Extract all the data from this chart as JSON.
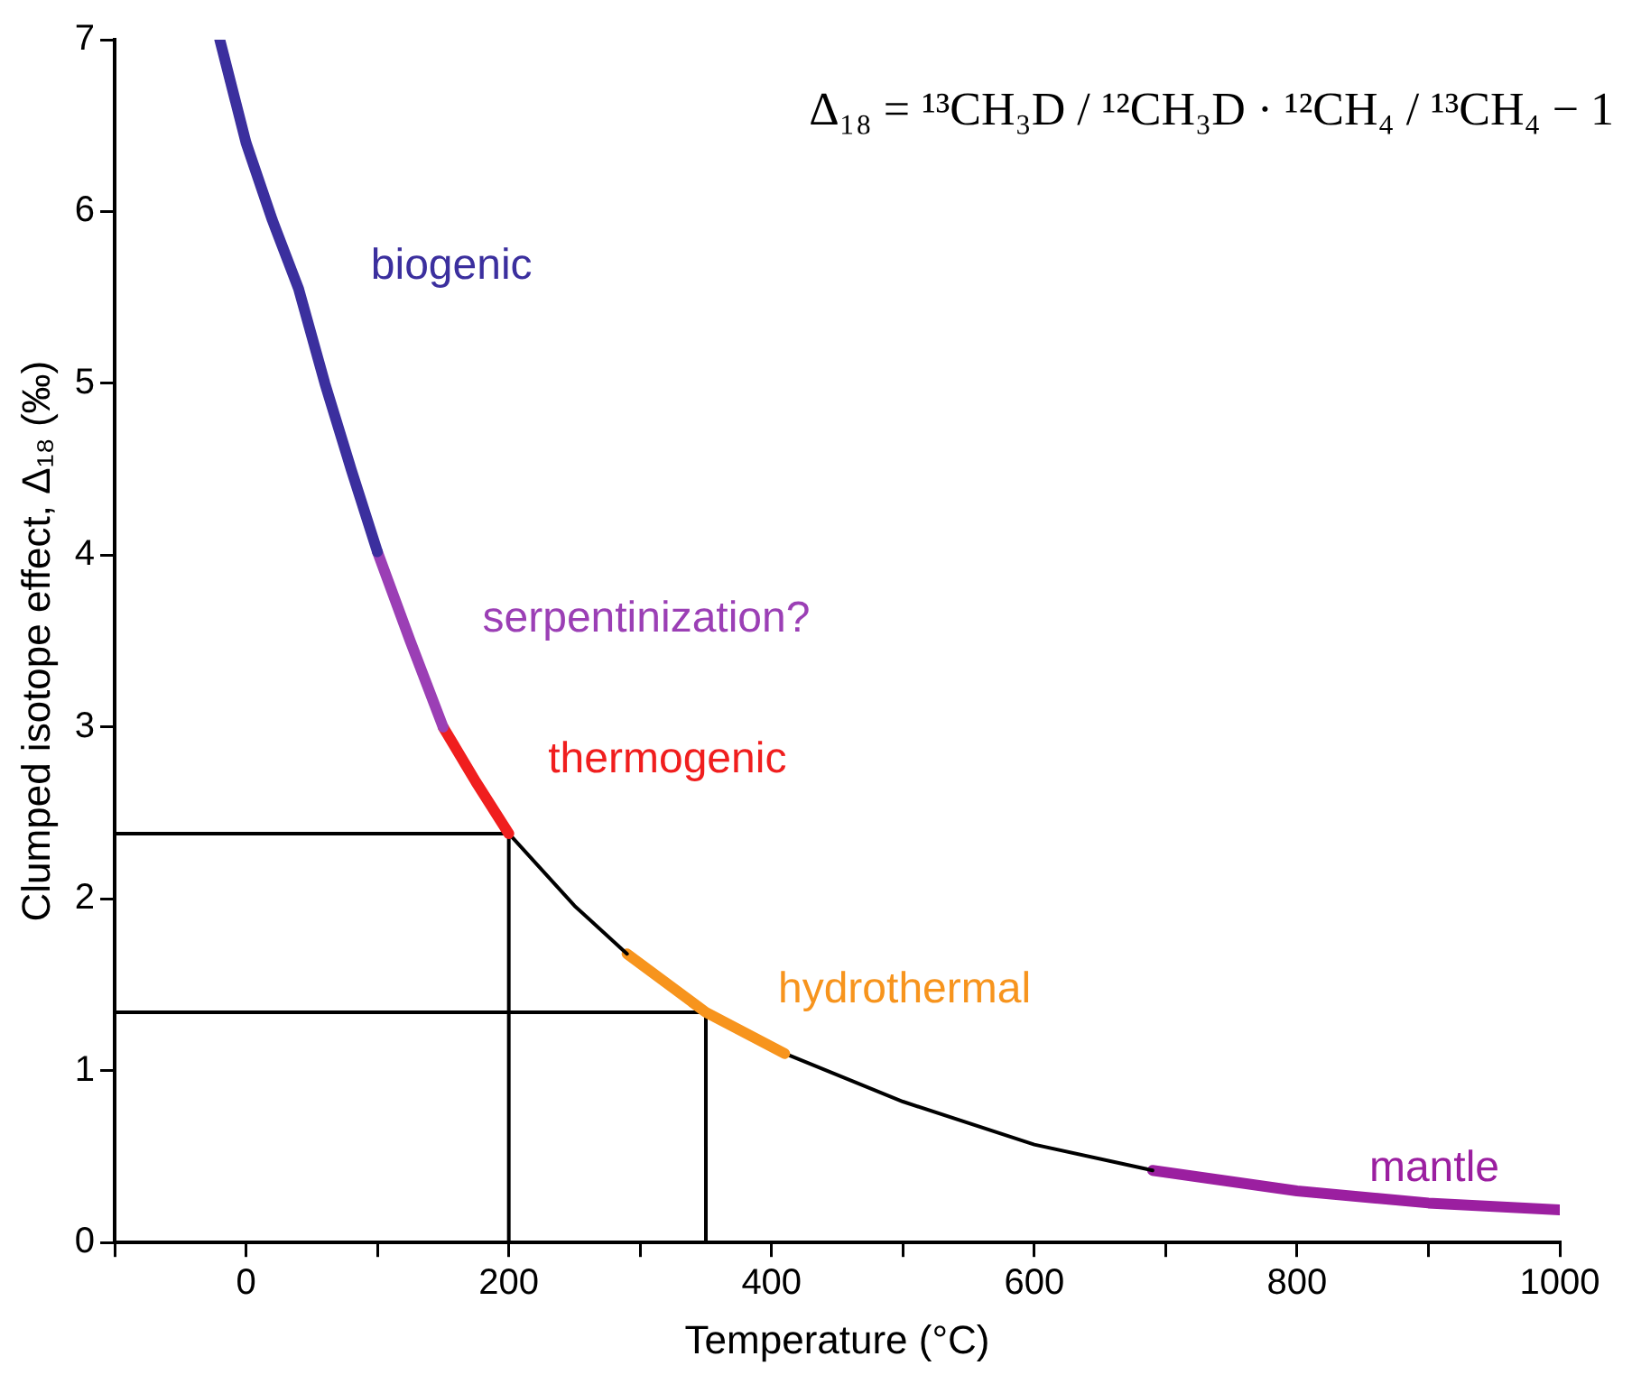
{
  "chart_data": {
    "type": "line",
    "xlabel": "Temperature (°C)",
    "ylabel": "Clumped isotope effect, Δ₁₈ (‰)",
    "annotations": [
      "Δ₁₈ = ¹³CH₃D / ¹²CH₃D · ¹²CH₄ / ¹³CH₄ − 1"
    ],
    "xlim": [
      -100,
      1000
    ],
    "ylim": [
      0,
      7
    ],
    "xticks": [
      {
        "value": -100,
        "label": null
      },
      0,
      {
        "value": 100,
        "label": null
      },
      200,
      {
        "value": 300,
        "label": null
      },
      400,
      {
        "value": 500,
        "label": null
      },
      600,
      {
        "value": 700,
        "label": null
      },
      800,
      {
        "value": 900,
        "label": null
      },
      1000
    ],
    "yticks": [
      0,
      1,
      2,
      3,
      4,
      5,
      6,
      7
    ],
    "legend": false,
    "marker": "none",
    "line_style": "solid",
    "series": [
      {
        "name": "biogenic",
        "color": "#3b2f9e",
        "x": [
          -20,
          0,
          20,
          40,
          60,
          80,
          100
        ],
        "values": [
          7.0,
          6.4,
          5.95,
          5.55,
          5.0,
          4.5,
          4.02
        ]
      },
      {
        "name": "serpentinization?",
        "color": "#9b3fb5",
        "x": [
          100,
          125,
          150
        ],
        "values": [
          4.02,
          3.5,
          3.0
        ]
      },
      {
        "name": "thermogenic",
        "color": "#f01e1e",
        "x": [
          150,
          175,
          200
        ],
        "values": [
          3.0,
          2.68,
          2.38
        ]
      },
      {
        "color": "#000000",
        "x": [
          200,
          250,
          290
        ],
        "values": [
          2.38,
          1.96,
          1.68
        ]
      },
      {
        "name": "hydrothermal",
        "color": "#f7941d",
        "x": [
          290,
          350,
          410
        ],
        "values": [
          1.68,
          1.34,
          1.1
        ]
      },
      {
        "color": "#000000",
        "x": [
          410,
          500,
          600,
          690
        ],
        "values": [
          1.1,
          0.82,
          0.57,
          0.42
        ]
      },
      {
        "name": "mantle",
        "color": "#9b1fa0",
        "x": [
          690,
          800,
          900,
          1000
        ],
        "values": [
          0.42,
          0.3,
          0.23,
          0.19
        ]
      },
      {
        "color": "#000000",
        "x": [
          -100,
          200,
          200
        ],
        "values": [
          2.38,
          2.38,
          0
        ]
      },
      {
        "color": "#000000",
        "x": [
          -100,
          350,
          350
        ],
        "values": [
          1.34,
          1.34,
          0
        ]
      }
    ]
  }
}
